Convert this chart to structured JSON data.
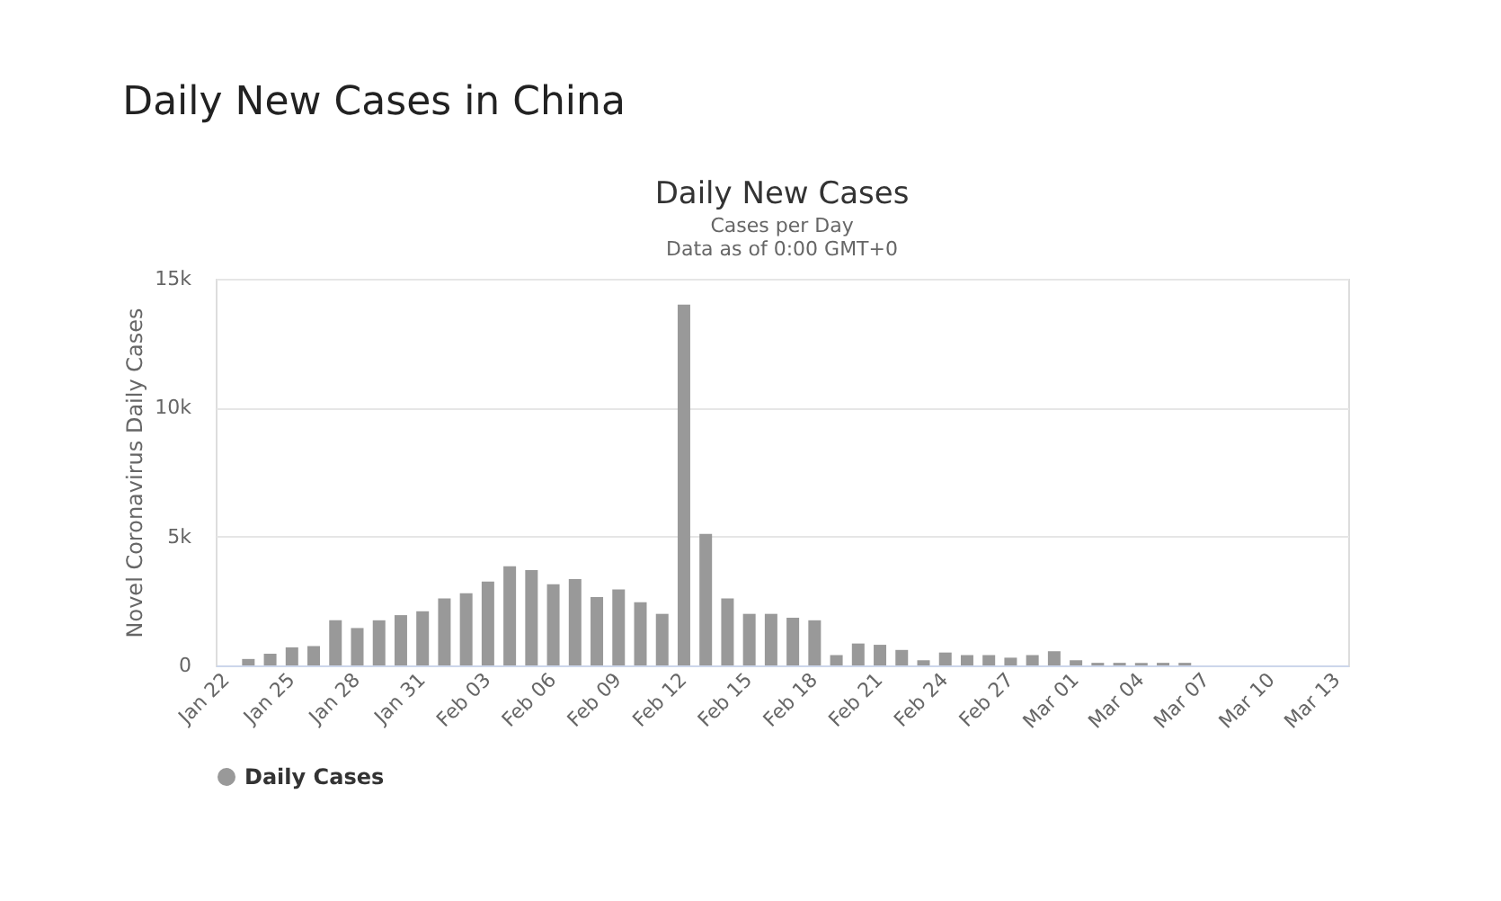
{
  "chart_data": {
    "type": "bar",
    "title": "Daily New Cases in China",
    "subtitle": [
      "Daily New Cases",
      "Cases per Day",
      "Data as of 0:00 GMT+0"
    ],
    "ylabel": "Novel Coronavirus Daily Cases",
    "categories": [
      "Jan 22",
      null,
      null,
      "Jan 25",
      null,
      null,
      "Jan 28",
      null,
      null,
      "Jan 31",
      null,
      null,
      "Feb 03",
      null,
      null,
      "Feb 06",
      null,
      null,
      "Feb 09",
      null,
      null,
      "Feb 12",
      null,
      null,
      "Feb 15",
      null,
      null,
      "Feb 18",
      null,
      null,
      "Feb 21",
      null,
      null,
      "Feb 24",
      null,
      null,
      "Feb 27",
      null,
      null,
      "Mar 01",
      null,
      null,
      "Mar 04",
      null,
      null,
      "Mar 07",
      null,
      null,
      "Mar 10",
      null,
      null,
      "Mar 13"
    ],
    "series": [
      {
        "name": "Daily Cases",
        "color": "#999999",
        "values": [
          0,
          250,
          450,
          700,
          750,
          1750,
          1450,
          1750,
          1950,
          2100,
          2600,
          2800,
          3250,
          3850,
          3700,
          3150,
          3350,
          2650,
          2950,
          2450,
          2000,
          14000,
          5100,
          2600,
          2000,
          2000,
          1850,
          1750,
          400,
          850,
          800,
          600,
          200,
          500,
          400,
          400,
          300,
          400,
          550,
          200,
          100,
          100,
          100,
          100,
          100,
          0,
          0,
          0,
          0,
          0,
          0,
          0
        ]
      }
    ],
    "ylim": [
      0,
      15000
    ],
    "yticks": [
      0,
      {
        "value": 5000,
        "label": "5k"
      },
      {
        "value": 10000,
        "label": "10k"
      },
      {
        "value": 15000,
        "label": "15k"
      }
    ],
    "grid": "y",
    "legend": "bottom"
  }
}
